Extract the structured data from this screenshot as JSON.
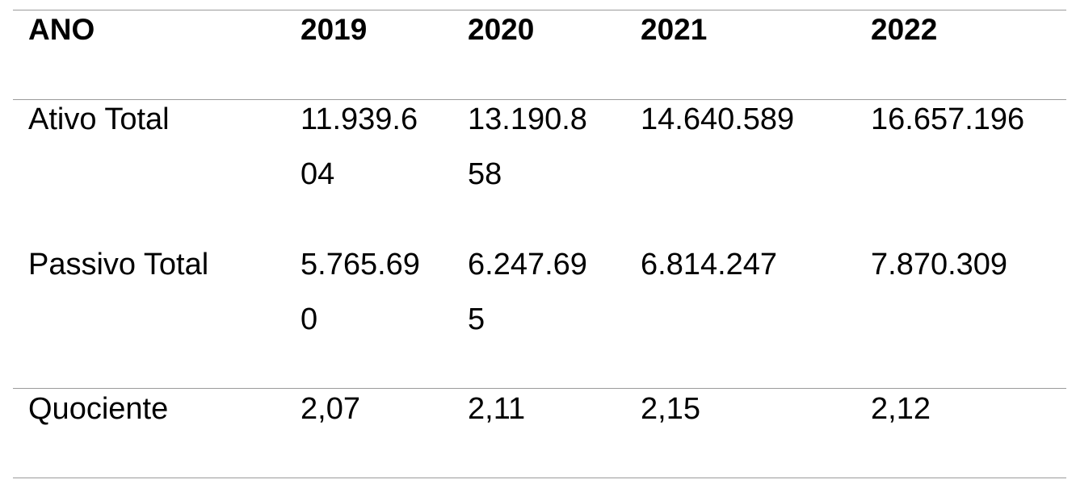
{
  "table": {
    "header": [
      "ANO",
      "2019",
      "2020",
      "2021",
      "2022"
    ],
    "rows": [
      [
        "Ativo Total",
        "11.939.604",
        "13.190.858",
        "14.640.589",
        "16.657.196"
      ],
      [
        "Passivo Total",
        "5.765.690",
        "6.247.695",
        "6.814.247",
        "7.870.309"
      ],
      [
        "Quociente",
        "2,07",
        "2,11",
        "2,15",
        "2,12"
      ]
    ]
  }
}
